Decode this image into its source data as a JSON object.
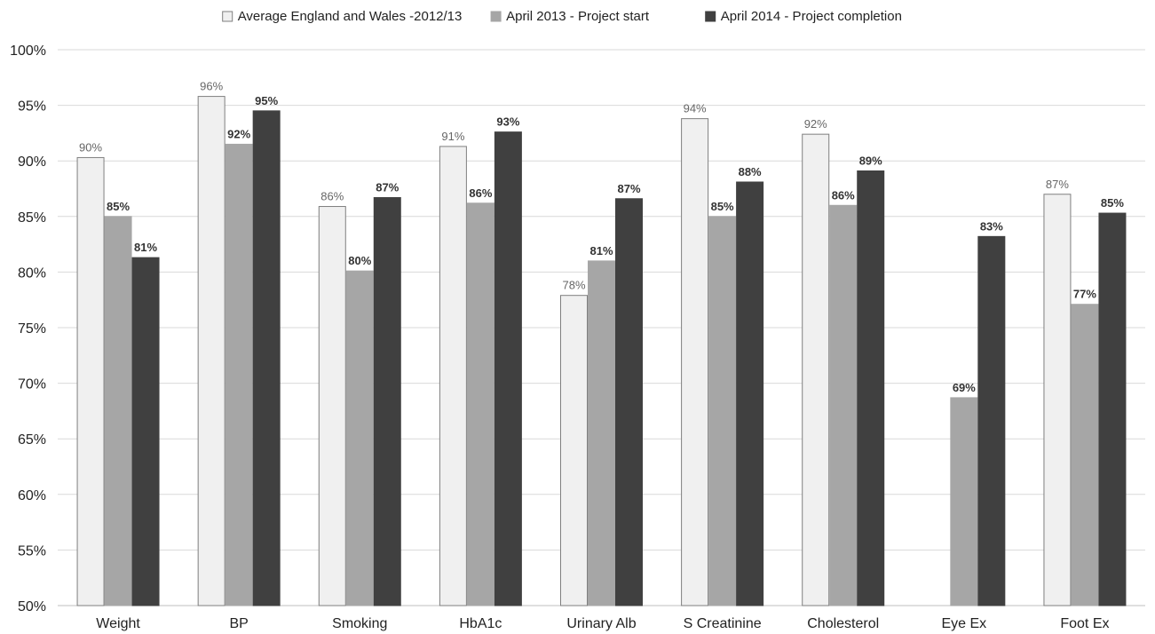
{
  "chart_data": {
    "type": "bar",
    "categories": [
      "Weight",
      "BP",
      "Smoking",
      "HbA1c",
      "Urinary Alb",
      "S Creatinine",
      "Cholesterol",
      "Eye Ex",
      "Foot Ex"
    ],
    "series": [
      {
        "name": "Average England and Wales -2012/13",
        "color": "#f0f0f0",
        "stroke": "#7f7f7f",
        "values": [
          90.3,
          95.8,
          85.9,
          91.3,
          77.9,
          93.8,
          92.4,
          null,
          87.0
        ],
        "labels": [
          "90%",
          "96%",
          "86%",
          "91%",
          "78%",
          "94%",
          "92%",
          "",
          "87%"
        ],
        "label_style": "normal"
      },
      {
        "name": "April 2013 - Project start",
        "color": "#a6a6a6",
        "stroke": "#a6a6a6",
        "values": [
          85.0,
          91.5,
          80.1,
          86.2,
          81.0,
          85.0,
          86.0,
          68.7,
          77.1
        ],
        "labels": [
          "85%",
          "92%",
          "80%",
          "86%",
          "81%",
          "85%",
          "86%",
          "69%",
          "77%"
        ],
        "label_style": "bold"
      },
      {
        "name": "April 2014 - Project completion",
        "color": "#404040",
        "stroke": "#404040",
        "values": [
          81.3,
          94.5,
          86.7,
          92.6,
          86.6,
          88.1,
          89.1,
          83.2,
          85.3
        ],
        "labels": [
          "81%",
          "95%",
          "87%",
          "93%",
          "87%",
          "88%",
          "89%",
          "83%",
          "85%"
        ],
        "label_style": "bold"
      }
    ],
    "y_ticks": [
      "50%",
      "55%",
      "60%",
      "65%",
      "70%",
      "75%",
      "80%",
      "85%",
      "90%",
      "95%",
      "100%"
    ],
    "ylim": [
      50,
      100
    ],
    "y_step": 5,
    "grid": true,
    "legend_position": "top-center",
    "title": "",
    "xlabel": "",
    "ylabel": ""
  }
}
